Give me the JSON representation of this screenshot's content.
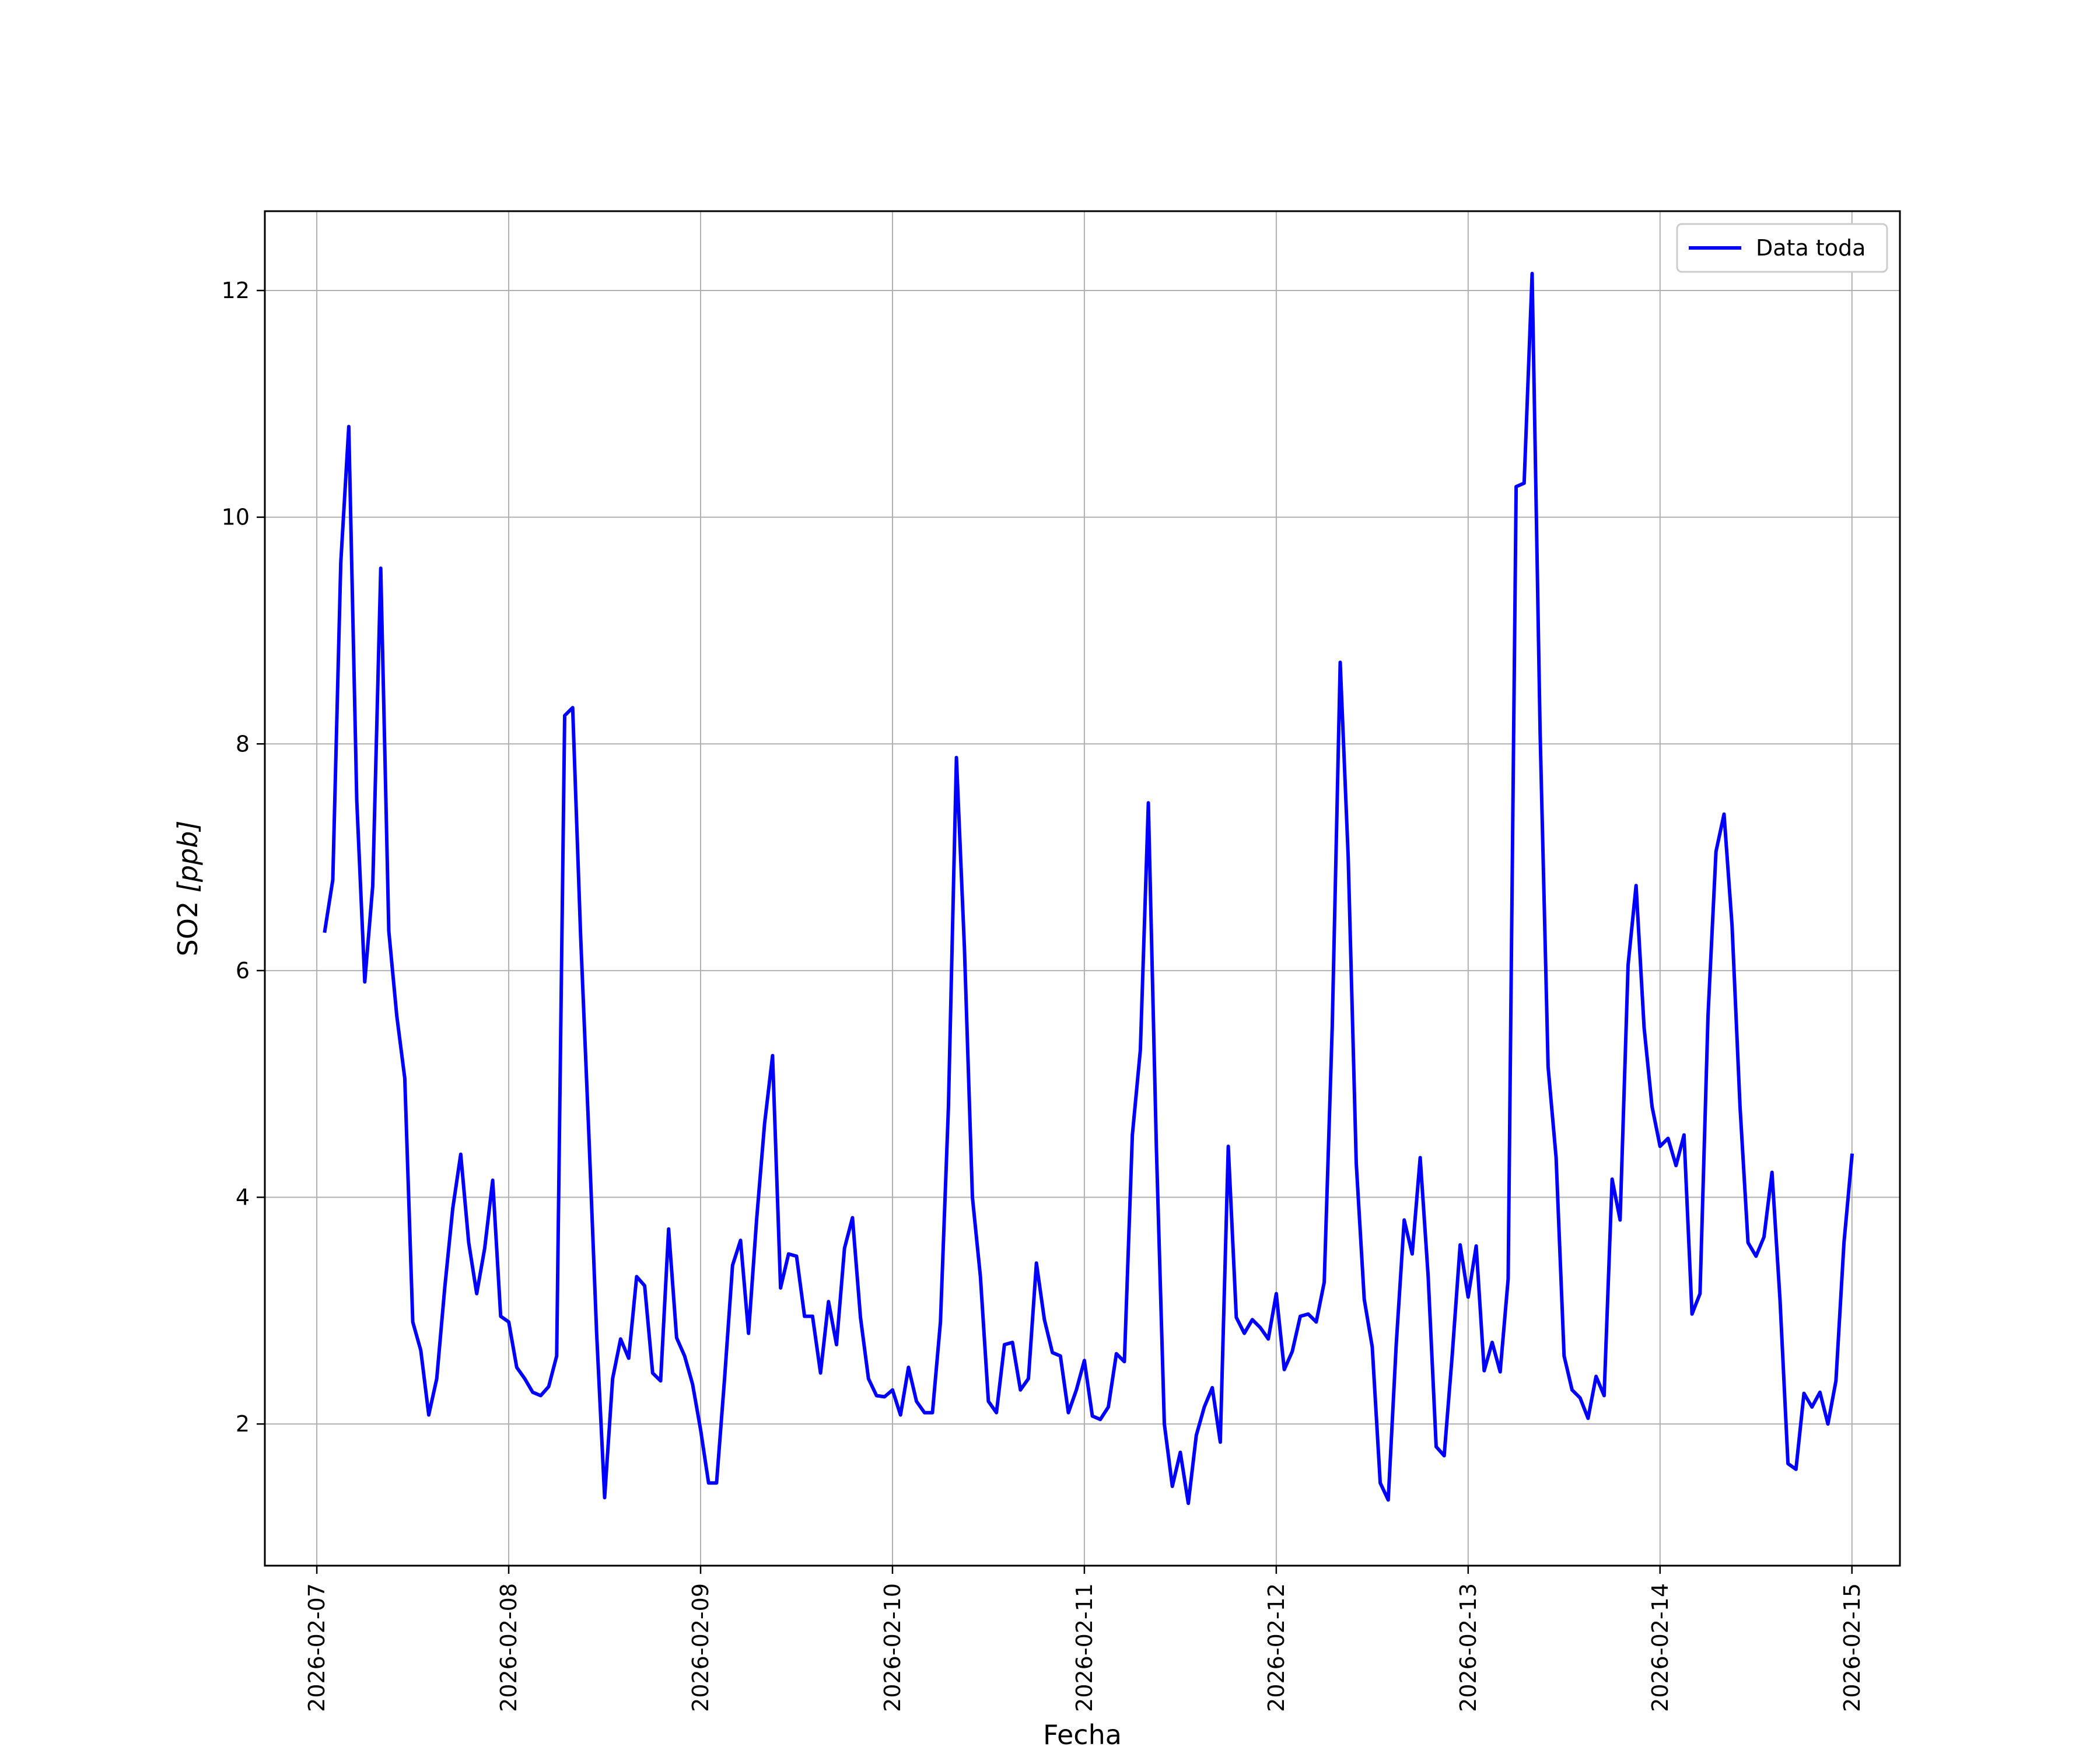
{
  "chart_data": {
    "type": "line",
    "title": "",
    "xlabel": "Fecha",
    "ylabel_main": "SO2 ",
    "ylabel_unit": "[ppb]",
    "xlim": [
      "2026-02-06T17:30:00",
      "2026-02-15T06:00:00"
    ],
    "ylim": [
      0.75,
      12.7
    ],
    "grid": true,
    "legend_position": "top-right",
    "x_ticks": [
      "2026-02-07",
      "2026-02-08",
      "2026-02-09",
      "2026-02-10",
      "2026-02-11",
      "2026-02-12",
      "2026-02-13",
      "2026-02-14",
      "2026-02-15"
    ],
    "y_ticks": [
      2,
      4,
      6,
      8,
      10,
      12
    ],
    "series": [
      {
        "name": "Data toda",
        "color": "#0000ff",
        "start": "2026-02-07T01:00:00",
        "step_hours": 1,
        "values": [
          6.35,
          6.8,
          9.6,
          10.8,
          7.5,
          5.9,
          6.75,
          9.55,
          6.35,
          5.6,
          5.05,
          2.9,
          2.65,
          2.08,
          2.4,
          3.2,
          3.9,
          4.38,
          3.6,
          3.15,
          3.55,
          4.15,
          2.95,
          2.9,
          2.5,
          2.4,
          2.28,
          2.25,
          2.33,
          2.6,
          8.25,
          8.32,
          6.3,
          4.6,
          2.8,
          1.35,
          2.4,
          2.75,
          2.58,
          3.3,
          3.22,
          2.45,
          2.38,
          3.72,
          2.76,
          2.6,
          2.35,
          1.95,
          1.48,
          1.48,
          2.4,
          3.4,
          3.62,
          2.8,
          3.8,
          4.65,
          5.25,
          3.2,
          3.5,
          3.48,
          2.95,
          2.95,
          2.45,
          3.08,
          2.7,
          3.55,
          3.82,
          2.94,
          2.4,
          2.25,
          2.24,
          2.3,
          2.08,
          2.5,
          2.2,
          2.1,
          2.1,
          2.9,
          4.8,
          7.88,
          6.2,
          4.0,
          3.3,
          2.2,
          2.1,
          2.7,
          2.72,
          2.3,
          2.4,
          3.42,
          2.92,
          2.63,
          2.6,
          2.1,
          2.3,
          2.56,
          2.07,
          2.04,
          2.15,
          2.62,
          2.55,
          4.55,
          5.3,
          7.48,
          4.45,
          2.0,
          1.45,
          1.75,
          1.3,
          1.9,
          2.15,
          2.32,
          1.84,
          4.45,
          2.94,
          2.8,
          2.92,
          2.85,
          2.75,
          3.15,
          2.48,
          2.64,
          2.95,
          2.97,
          2.9,
          3.25,
          5.5,
          8.72,
          7.0,
          4.3,
          3.1,
          2.68,
          1.48,
          1.33,
          2.7,
          3.8,
          3.5,
          4.35,
          3.3,
          1.8,
          1.72,
          2.6,
          3.58,
          3.12,
          3.57,
          2.47,
          2.72,
          2.46,
          3.28,
          10.27,
          10.3,
          12.15,
          8.1,
          5.15,
          4.35,
          2.6,
          2.3,
          2.23,
          2.05,
          2.42,
          2.25,
          4.16,
          3.8,
          6.05,
          6.75,
          5.5,
          4.8,
          4.45,
          4.52,
          4.28,
          4.55,
          2.97,
          3.15,
          5.6,
          7.05,
          7.38,
          6.4,
          4.8,
          3.6,
          3.48,
          3.65,
          4.22,
          3.1,
          1.65,
          1.6,
          2.27,
          2.15,
          2.28,
          2.0,
          2.38,
          3.6,
          4.37
        ]
      }
    ]
  }
}
